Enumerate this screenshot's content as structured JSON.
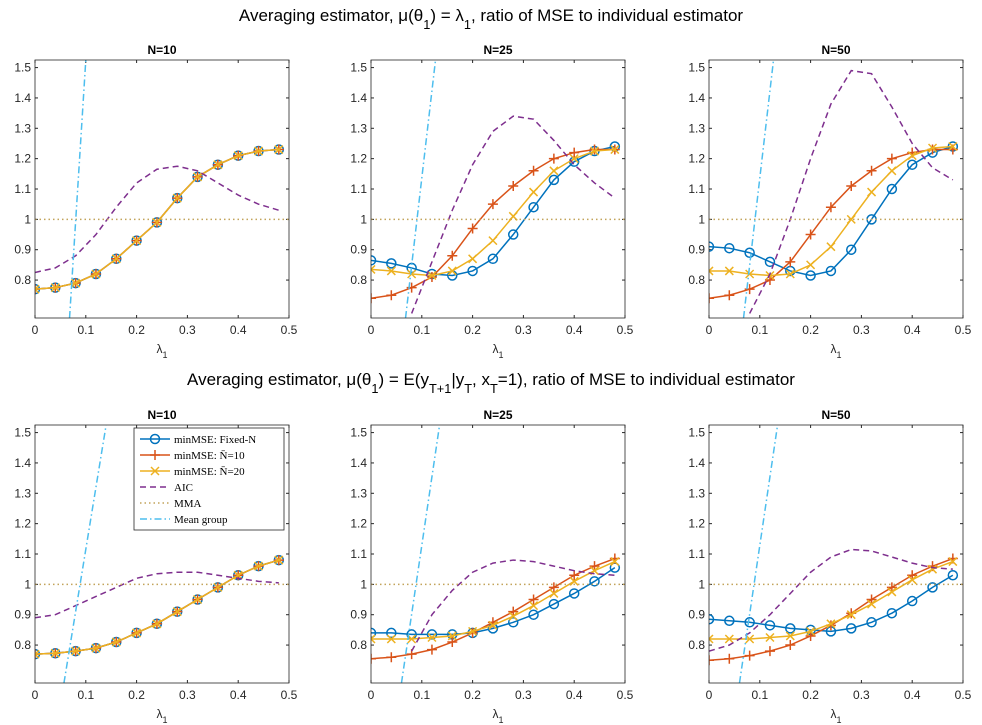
{
  "suptitles": [
    [
      "Averaging estimator, μ(θ",
      "1",
      ") = λ",
      "1",
      ", ratio of MSE to individual estimator"
    ],
    [
      "Averaging estimator, μ(θ",
      "1",
      ") = E(y",
      "T+1",
      "|y",
      "T",
      ", x",
      "T",
      "=1), ratio of MSE to individual estimator"
    ]
  ],
  "chart_data": [
    {
      "type": "line",
      "title": "N=10",
      "xlabel": [
        "λ",
        "1"
      ],
      "x": [
        0,
        0.04,
        0.08,
        0.12,
        0.16,
        0.2,
        0.24,
        0.28,
        0.32,
        0.36,
        0.4,
        0.44,
        0.48
      ],
      "xlim": [
        0,
        0.5
      ],
      "ylim": [
        0.675,
        1.525
      ],
      "xticks": [
        0,
        0.1,
        0.2,
        0.3,
        0.4,
        0.5
      ],
      "yticks": [
        0.8,
        0.9,
        1,
        1.1,
        1.2,
        1.3,
        1.4,
        1.5
      ],
      "series": [
        {
          "color": "#0072bd",
          "marker": "o",
          "linestyle": "-",
          "values": [
            0.77,
            0.775,
            0.79,
            0.82,
            0.87,
            0.93,
            0.99,
            1.07,
            1.14,
            1.18,
            1.21,
            1.225,
            1.23
          ]
        },
        {
          "color": "#d95319",
          "marker": "+",
          "linestyle": "-",
          "values": [
            0.77,
            0.775,
            0.79,
            0.82,
            0.87,
            0.93,
            0.99,
            1.07,
            1.14,
            1.18,
            1.21,
            1.225,
            1.23
          ]
        },
        {
          "color": "#edb120",
          "marker": "x",
          "linestyle": "-",
          "values": [
            0.77,
            0.775,
            0.79,
            0.82,
            0.87,
            0.93,
            0.99,
            1.07,
            1.14,
            1.18,
            1.21,
            1.225,
            1.23
          ]
        },
        {
          "color": "#7e2f8e",
          "linestyle": "--",
          "values": [
            0.825,
            0.84,
            0.88,
            0.95,
            1.04,
            1.12,
            1.165,
            1.175,
            1.16,
            1.12,
            1.08,
            1.05,
            1.03
          ]
        },
        {
          "color": "#c2a35a",
          "linestyle": ":",
          "x": [
            0,
            0.5
          ],
          "values": [
            1,
            1
          ]
        },
        {
          "color": "#4dbeee",
          "linestyle": "-.",
          "x": [
            0.068,
            0.1
          ],
          "values": [
            0.675,
            1.525
          ]
        }
      ]
    },
    {
      "type": "line",
      "title": "N=25",
      "xlabel": [
        "λ",
        "1"
      ],
      "x": [
        0,
        0.04,
        0.08,
        0.12,
        0.16,
        0.2,
        0.24,
        0.28,
        0.32,
        0.36,
        0.4,
        0.44,
        0.48
      ],
      "xlim": [
        0,
        0.5
      ],
      "ylim": [
        0.675,
        1.525
      ],
      "xticks": [
        0,
        0.1,
        0.2,
        0.3,
        0.4,
        0.5
      ],
      "yticks": [
        0.8,
        0.9,
        1,
        1.1,
        1.2,
        1.3,
        1.4,
        1.5
      ],
      "series": [
        {
          "color": "#0072bd",
          "marker": "o",
          "linestyle": "-",
          "values": [
            0.865,
            0.855,
            0.84,
            0.82,
            0.815,
            0.83,
            0.87,
            0.95,
            1.04,
            1.13,
            1.19,
            1.225,
            1.24
          ]
        },
        {
          "color": "#d95319",
          "marker": "+",
          "linestyle": "-",
          "values": [
            0.74,
            0.75,
            0.775,
            0.81,
            0.88,
            0.97,
            1.05,
            1.11,
            1.16,
            1.2,
            1.22,
            1.23,
            1.23
          ]
        },
        {
          "color": "#edb120",
          "marker": "x",
          "linestyle": "-",
          "values": [
            0.835,
            0.83,
            0.82,
            0.815,
            0.83,
            0.87,
            0.93,
            1.01,
            1.09,
            1.16,
            1.2,
            1.225,
            1.23
          ]
        },
        {
          "color": "#7e2f8e",
          "linestyle": "--",
          "values": [
            null,
            null,
            0.69,
            0.86,
            1.03,
            1.18,
            1.29,
            1.34,
            1.33,
            1.26,
            1.18,
            1.12,
            1.07
          ]
        },
        {
          "color": "#c2a35a",
          "linestyle": ":",
          "x": [
            0,
            0.5
          ],
          "values": [
            1,
            1
          ]
        },
        {
          "color": "#4dbeee",
          "linestyle": "-.",
          "x": [
            0.068,
            0.127
          ],
          "values": [
            0.675,
            1.525
          ]
        }
      ]
    },
    {
      "type": "line",
      "title": "N=50",
      "xlabel": [
        "λ",
        "1"
      ],
      "x": [
        0,
        0.04,
        0.08,
        0.12,
        0.16,
        0.2,
        0.24,
        0.28,
        0.32,
        0.36,
        0.4,
        0.44,
        0.48
      ],
      "xlim": [
        0,
        0.5
      ],
      "ylim": [
        0.675,
        1.525
      ],
      "xticks": [
        0,
        0.1,
        0.2,
        0.3,
        0.4,
        0.5
      ],
      "yticks": [
        0.8,
        0.9,
        1,
        1.1,
        1.2,
        1.3,
        1.4,
        1.5
      ],
      "series": [
        {
          "color": "#0072bd",
          "marker": "o",
          "linestyle": "-",
          "values": [
            0.91,
            0.905,
            0.89,
            0.86,
            0.83,
            0.815,
            0.83,
            0.9,
            1.0,
            1.1,
            1.18,
            1.22,
            1.24
          ]
        },
        {
          "color": "#d95319",
          "marker": "+",
          "linestyle": "-",
          "values": [
            0.74,
            0.75,
            0.77,
            0.8,
            0.86,
            0.95,
            1.04,
            1.11,
            1.16,
            1.2,
            1.22,
            1.23,
            1.23
          ]
        },
        {
          "color": "#edb120",
          "marker": "x",
          "linestyle": "-",
          "values": [
            0.83,
            0.83,
            0.82,
            0.815,
            0.82,
            0.85,
            0.91,
            1.0,
            1.09,
            1.16,
            1.21,
            1.235,
            1.24
          ]
        },
        {
          "color": "#7e2f8e",
          "linestyle": "--",
          "values": [
            null,
            null,
            0.69,
            0.82,
            1.0,
            1.2,
            1.38,
            1.49,
            1.48,
            1.37,
            1.25,
            1.17,
            1.13
          ]
        },
        {
          "color": "#c2a35a",
          "linestyle": ":",
          "x": [
            0,
            0.5
          ],
          "values": [
            1,
            1
          ]
        },
        {
          "color": "#4dbeee",
          "linestyle": "-.",
          "x": [
            0.068,
            0.127
          ],
          "values": [
            0.675,
            1.525
          ]
        }
      ]
    },
    {
      "type": "line",
      "title": "N=10",
      "xlabel": [
        "λ",
        "1"
      ],
      "legend": "northeast",
      "x": [
        0,
        0.04,
        0.08,
        0.12,
        0.16,
        0.2,
        0.24,
        0.28,
        0.32,
        0.36,
        0.4,
        0.44,
        0.48
      ],
      "xlim": [
        0,
        0.5
      ],
      "ylim": [
        0.675,
        1.525
      ],
      "xticks": [
        0,
        0.1,
        0.2,
        0.3,
        0.4,
        0.5
      ],
      "yticks": [
        0.8,
        0.9,
        1,
        1.1,
        1.2,
        1.3,
        1.4,
        1.5
      ],
      "series": [
        {
          "name": "minMSE: Fixed-N",
          "color": "#0072bd",
          "marker": "o",
          "linestyle": "-",
          "values": [
            0.77,
            0.773,
            0.78,
            0.79,
            0.81,
            0.84,
            0.87,
            0.91,
            0.95,
            0.99,
            1.03,
            1.06,
            1.08
          ]
        },
        {
          "name": "minMSE: N̄=10",
          "color": "#d95319",
          "marker": "+",
          "linestyle": "-",
          "values": [
            0.77,
            0.773,
            0.78,
            0.79,
            0.81,
            0.84,
            0.87,
            0.91,
            0.95,
            0.99,
            1.03,
            1.06,
            1.08
          ]
        },
        {
          "name": "minMSE: N̄=20",
          "color": "#edb120",
          "marker": "x",
          "linestyle": "-",
          "values": [
            0.77,
            0.773,
            0.78,
            0.79,
            0.81,
            0.84,
            0.87,
            0.91,
            0.95,
            0.99,
            1.03,
            1.06,
            1.08
          ]
        },
        {
          "name": "AIC",
          "color": "#7e2f8e",
          "linestyle": "--",
          "values": [
            0.89,
            0.9,
            0.93,
            0.96,
            0.99,
            1.02,
            1.035,
            1.04,
            1.04,
            1.03,
            1.02,
            1.01,
            1.005
          ]
        },
        {
          "name": "MMA",
          "color": "#c2a35a",
          "linestyle": ":",
          "x": [
            0,
            0.5
          ],
          "values": [
            1,
            1
          ]
        },
        {
          "name": "Mean group",
          "color": "#4dbeee",
          "linestyle": "-.",
          "x": [
            0.057,
            0.14
          ],
          "values": [
            0.675,
            1.525
          ]
        }
      ]
    },
    {
      "type": "line",
      "title": "N=25",
      "xlabel": [
        "λ",
        "1"
      ],
      "x": [
        0,
        0.04,
        0.08,
        0.12,
        0.16,
        0.2,
        0.24,
        0.28,
        0.32,
        0.36,
        0.4,
        0.44,
        0.48
      ],
      "xlim": [
        0,
        0.5
      ],
      "ylim": [
        0.675,
        1.525
      ],
      "xticks": [
        0,
        0.1,
        0.2,
        0.3,
        0.4,
        0.5
      ],
      "yticks": [
        0.8,
        0.9,
        1,
        1.1,
        1.2,
        1.3,
        1.4,
        1.5
      ],
      "series": [
        {
          "color": "#0072bd",
          "marker": "o",
          "linestyle": "-",
          "values": [
            0.84,
            0.84,
            0.835,
            0.835,
            0.835,
            0.84,
            0.855,
            0.875,
            0.9,
            0.935,
            0.97,
            1.01,
            1.055
          ]
        },
        {
          "color": "#d95319",
          "marker": "+",
          "linestyle": "-",
          "values": [
            0.755,
            0.76,
            0.77,
            0.785,
            0.81,
            0.84,
            0.875,
            0.91,
            0.95,
            0.99,
            1.03,
            1.06,
            1.085
          ]
        },
        {
          "color": "#edb120",
          "marker": "x",
          "linestyle": "-",
          "values": [
            0.82,
            0.82,
            0.82,
            0.825,
            0.83,
            0.845,
            0.865,
            0.895,
            0.93,
            0.97,
            1.01,
            1.045,
            1.075
          ]
        },
        {
          "color": "#7e2f8e",
          "linestyle": "--",
          "values": [
            null,
            null,
            0.78,
            0.9,
            0.98,
            1.04,
            1.07,
            1.08,
            1.075,
            1.06,
            1.045,
            1.035,
            1.03
          ]
        },
        {
          "color": "#c2a35a",
          "linestyle": ":",
          "x": [
            0,
            0.5
          ],
          "values": [
            1,
            1
          ]
        },
        {
          "color": "#4dbeee",
          "linestyle": "-.",
          "x": [
            0.06,
            0.135
          ],
          "values": [
            0.675,
            1.525
          ]
        }
      ]
    },
    {
      "type": "line",
      "title": "N=50",
      "xlabel": [
        "λ",
        "1"
      ],
      "x": [
        0,
        0.04,
        0.08,
        0.12,
        0.16,
        0.2,
        0.24,
        0.28,
        0.32,
        0.36,
        0.4,
        0.44,
        0.48
      ],
      "xlim": [
        0,
        0.5
      ],
      "ylim": [
        0.675,
        1.525
      ],
      "xticks": [
        0,
        0.1,
        0.2,
        0.3,
        0.4,
        0.5
      ],
      "yticks": [
        0.8,
        0.9,
        1,
        1.1,
        1.2,
        1.3,
        1.4,
        1.5
      ],
      "series": [
        {
          "color": "#0072bd",
          "marker": "o",
          "linestyle": "-",
          "values": [
            0.885,
            0.88,
            0.875,
            0.865,
            0.855,
            0.85,
            0.845,
            0.855,
            0.875,
            0.905,
            0.945,
            0.99,
            1.03
          ]
        },
        {
          "color": "#d95319",
          "marker": "+",
          "linestyle": "-",
          "values": [
            0.75,
            0.755,
            0.765,
            0.78,
            0.8,
            0.83,
            0.865,
            0.905,
            0.95,
            0.99,
            1.03,
            1.06,
            1.085
          ]
        },
        {
          "color": "#edb120",
          "marker": "x",
          "linestyle": "-",
          "values": [
            0.82,
            0.82,
            0.82,
            0.825,
            0.83,
            0.845,
            0.87,
            0.9,
            0.935,
            0.975,
            1.015,
            1.05,
            1.075
          ]
        },
        {
          "color": "#7e2f8e",
          "linestyle": "--",
          "values": [
            0.78,
            0.8,
            0.84,
            0.9,
            0.97,
            1.04,
            1.09,
            1.115,
            1.11,
            1.09,
            1.07,
            1.055,
            1.05
          ]
        },
        {
          "color": "#c2a35a",
          "linestyle": ":",
          "x": [
            0,
            0.5
          ],
          "values": [
            1,
            1
          ]
        },
        {
          "color": "#4dbeee",
          "linestyle": "-.",
          "x": [
            0.06,
            0.135
          ],
          "values": [
            0.675,
            1.525
          ]
        }
      ]
    }
  ]
}
